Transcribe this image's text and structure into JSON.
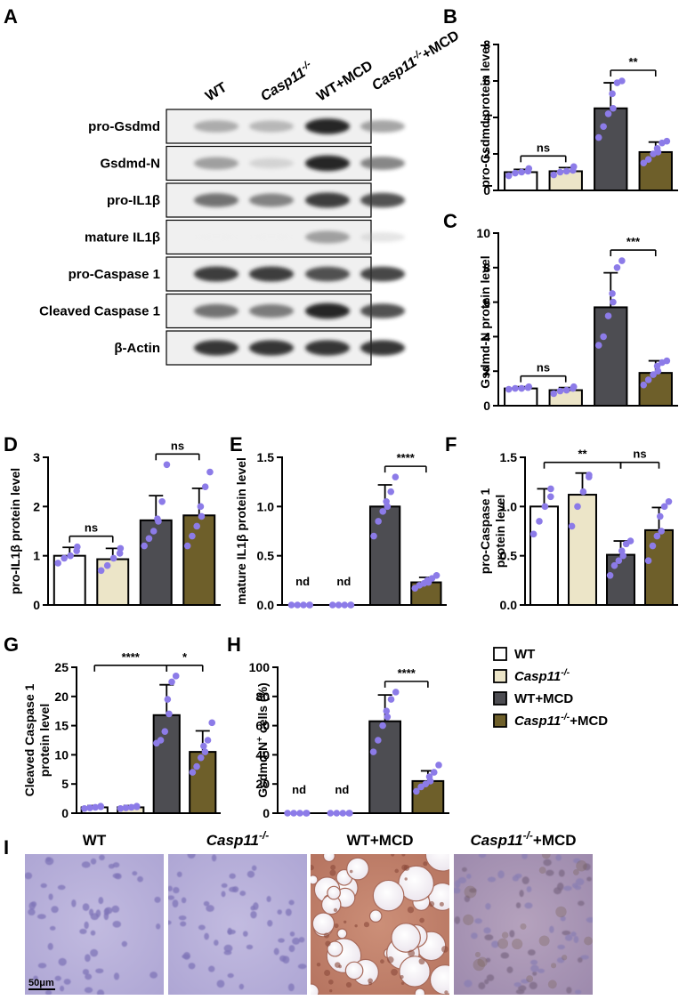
{
  "panels": {
    "A": "A",
    "B": "B",
    "C": "C",
    "D": "D",
    "E": "E",
    "F": "F",
    "G": "G",
    "H": "H",
    "I": "I"
  },
  "blot": {
    "lanes": [
      {
        "main": "WT",
        "sup": "",
        "tail": "",
        "italic": false
      },
      {
        "main": "Casp11",
        "sup": "-/-",
        "tail": "",
        "italic": true
      },
      {
        "main": "WT+MCD",
        "sup": "",
        "tail": "",
        "italic": false
      },
      {
        "main": "Casp11",
        "sup": "-/-",
        "tail": "+MCD",
        "italic": true
      }
    ],
    "rows": [
      {
        "label": "pro-Gsdmd",
        "intensity": [
          0.55,
          0.5,
          0.95,
          0.6
        ]
      },
      {
        "label": "Gsdmd-N",
        "intensity": [
          0.6,
          0.35,
          0.95,
          0.7
        ]
      },
      {
        "label": "pro-IL1β",
        "intensity": [
          0.75,
          0.7,
          0.9,
          0.85
        ]
      },
      {
        "label": "mature IL1β",
        "intensity": [
          0.03,
          0.03,
          0.6,
          0.3
        ]
      },
      {
        "label": "pro-Caspase 1",
        "intensity": [
          0.9,
          0.9,
          0.85,
          0.88
        ]
      },
      {
        "label": "Cleaved Caspase 1",
        "intensity": [
          0.75,
          0.72,
          0.95,
          0.85
        ]
      },
      {
        "label": "β-Actin",
        "intensity": [
          0.92,
          0.92,
          0.92,
          0.92
        ]
      }
    ]
  },
  "groups": [
    {
      "name": "WT",
      "sup": "",
      "tail": "",
      "italic": false,
      "color": "#ffffff"
    },
    {
      "name": "Casp11",
      "sup": "-/-",
      "tail": "",
      "italic": true,
      "color": "#ece5c8"
    },
    {
      "name": "WT+MCD",
      "sup": "",
      "tail": "",
      "italic": false,
      "color": "#4d4d52"
    },
    {
      "name": "Casp11",
      "sup": "-/-",
      "tail": "+MCD",
      "italic": true,
      "color": "#6e5f2a"
    }
  ],
  "point_color": "#8c7be8",
  "chart_data": [
    {
      "panel": "B",
      "type": "bar",
      "ylabel": "pro-Gsdmd protein level",
      "ylim": [
        0,
        8
      ],
      "ticks": [
        0,
        2,
        4,
        6,
        8
      ],
      "tick_labels": [
        "0",
        "2",
        "4",
        "6",
        "8"
      ],
      "means": [
        1.0,
        1.05,
        4.5,
        2.1
      ],
      "sd": [
        0.15,
        0.2,
        1.4,
        0.55
      ],
      "points": [
        [
          0.8,
          0.95,
          1.0,
          1.05,
          1.2
        ],
        [
          0.85,
          1.0,
          1.05,
          1.1,
          1.3
        ],
        [
          2.9,
          3.5,
          4.2,
          4.5,
          5.3,
          5.9,
          6.0
        ],
        [
          1.5,
          1.7,
          2.0,
          2.1,
          2.3,
          2.6,
          2.7
        ]
      ],
      "nd": [],
      "comparisons": [
        {
          "from": 0,
          "to": 1,
          "label": "ns"
        },
        {
          "from": 2,
          "to": 3,
          "label": "**"
        }
      ]
    },
    {
      "panel": "C",
      "type": "bar",
      "ylabel": "Gsdmd-N protein level",
      "ylim": [
        0,
        10
      ],
      "ticks": [
        0,
        2,
        4,
        6,
        8,
        10
      ],
      "tick_labels": [
        "0",
        "2",
        "4",
        "6",
        "8",
        "10"
      ],
      "means": [
        1.0,
        0.9,
        5.7,
        1.9
      ],
      "sd": [
        0.1,
        0.15,
        2.0,
        0.7
      ],
      "points": [
        [
          0.95,
          1.0,
          1.0,
          1.05,
          1.1
        ],
        [
          0.7,
          0.85,
          0.9,
          1.0,
          1.1
        ],
        [
          3.5,
          4.0,
          5.2,
          6.0,
          6.5,
          8.0,
          8.4
        ],
        [
          1.2,
          1.5,
          1.8,
          2.0,
          2.3,
          2.5,
          2.6
        ]
      ],
      "nd": [],
      "comparisons": [
        {
          "from": 0,
          "to": 1,
          "label": "ns"
        },
        {
          "from": 2,
          "to": 3,
          "label": "***"
        }
      ]
    },
    {
      "panel": "D",
      "type": "bar",
      "ylabel": "pro-IL1β protein level",
      "ylim": [
        0,
        3
      ],
      "ticks": [
        0,
        1,
        2,
        3
      ],
      "tick_labels": [
        "0",
        "1",
        "2",
        "3"
      ],
      "means": [
        1.0,
        0.93,
        1.72,
        1.82
      ],
      "sd": [
        0.17,
        0.22,
        0.5,
        0.55
      ],
      "points": [
        [
          0.85,
          0.95,
          1.0,
          1.1,
          1.18
        ],
        [
          0.7,
          0.8,
          0.95,
          1.05,
          1.15
        ],
        [
          1.2,
          1.35,
          1.5,
          1.7,
          1.75,
          2.1,
          2.85
        ],
        [
          1.2,
          1.4,
          1.6,
          1.8,
          2.0,
          2.4,
          2.7
        ]
      ],
      "nd": [],
      "comparisons": [
        {
          "from": 0,
          "to": 1,
          "label": "ns"
        },
        {
          "from": 2,
          "to": 3,
          "label": "ns"
        }
      ]
    },
    {
      "panel": "E",
      "type": "bar",
      "ylabel": "mature IL1β protein level",
      "ylim": [
        0,
        1.5
      ],
      "ticks": [
        0,
        0.5,
        1.0,
        1.5
      ],
      "tick_labels": [
        "0.0",
        "0.5",
        "1.0",
        "1.5"
      ],
      "means": [
        0,
        0,
        1.0,
        0.23
      ],
      "sd": [
        0,
        0,
        0.22,
        0.05
      ],
      "points": [
        [
          0,
          0,
          0,
          0,
          0
        ],
        [
          0,
          0,
          0,
          0,
          0
        ],
        [
          0.7,
          0.85,
          0.95,
          1.0,
          1.05,
          1.15,
          1.3
        ],
        [
          0.17,
          0.2,
          0.22,
          0.23,
          0.25,
          0.27,
          0.3
        ]
      ],
      "nd": [
        "nd",
        "nd",
        "",
        ""
      ],
      "comparisons": [
        {
          "from": 2,
          "to": 3,
          "label": "****"
        }
      ]
    },
    {
      "panel": "F",
      "type": "bar",
      "ylabel": "pro-Caspase 1\nprotein level",
      "ylim": [
        0,
        1.5
      ],
      "ticks": [
        0,
        0.5,
        1.0,
        1.5
      ],
      "tick_labels": [
        "0.0",
        "0.5",
        "1.0",
        "1.5"
      ],
      "means": [
        1.0,
        1.12,
        0.51,
        0.76
      ],
      "sd": [
        0.18,
        0.22,
        0.14,
        0.23
      ],
      "points": [
        [
          0.72,
          0.85,
          1.0,
          1.1,
          1.18
        ],
        [
          0.8,
          1.0,
          1.15,
          1.3,
          1.32
        ],
        [
          0.3,
          0.4,
          0.45,
          0.5,
          0.55,
          0.62,
          0.65
        ],
        [
          0.45,
          0.6,
          0.7,
          0.75,
          0.9,
          1.0,
          1.05
        ]
      ],
      "nd": [],
      "comparisons": [
        {
          "from": 0,
          "to": 2,
          "label": "**"
        },
        {
          "from": 2,
          "to": 3,
          "label": "ns"
        }
      ]
    },
    {
      "panel": "G",
      "type": "bar",
      "ylabel": "Cleaved Caspase 1\nprotein level",
      "ylim": [
        0,
        25
      ],
      "ticks": [
        0,
        5,
        10,
        15,
        20,
        25
      ],
      "tick_labels": [
        "0",
        "5",
        "10",
        "15",
        "20",
        "25"
      ],
      "means": [
        1.0,
        1.0,
        16.8,
        10.5
      ],
      "sd": [
        0.3,
        0.3,
        5.2,
        3.6
      ],
      "points": [
        [
          0.8,
          0.9,
          1.0,
          1.1,
          1.2
        ],
        [
          0.8,
          0.9,
          1.0,
          1.1,
          1.2
        ],
        [
          12.0,
          12.5,
          14.0,
          17.0,
          19.5,
          22.5,
          23.5
        ],
        [
          7.0,
          8.0,
          9.5,
          10.5,
          11.5,
          12.5,
          15.5
        ]
      ],
      "nd": [],
      "comparisons": [
        {
          "from": 0,
          "to": 2,
          "label": "****"
        },
        {
          "from": 2,
          "to": 3,
          "label": "*"
        }
      ]
    },
    {
      "panel": "H",
      "type": "bar",
      "ylabel": "Gsdmd-N+ cells (%)",
      "ylim": [
        0,
        100
      ],
      "ticks": [
        0,
        20,
        40,
        60,
        80,
        100
      ],
      "tick_labels": [
        "0",
        "20",
        "40",
        "60",
        "80",
        "100"
      ],
      "means": [
        0,
        0,
        63,
        22
      ],
      "sd": [
        0,
        0,
        18,
        7
      ],
      "points": [
        [
          0,
          0,
          0,
          0,
          0
        ],
        [
          0,
          0,
          0,
          0,
          0
        ],
        [
          42,
          50,
          60,
          66,
          70,
          78,
          83
        ],
        [
          15,
          18,
          20,
          22,
          25,
          28,
          33
        ]
      ],
      "nd": [
        "nd",
        "nd",
        "",
        ""
      ],
      "comparisons": [
        {
          "from": 2,
          "to": 3,
          "label": "****"
        }
      ]
    }
  ],
  "legend": [
    {
      "name": "WT",
      "sup": "",
      "tail": "",
      "italic": false,
      "color": "#ffffff"
    },
    {
      "name": "Casp11",
      "sup": "-/-",
      "tail": "",
      "italic": true,
      "color": "#ece5c8"
    },
    {
      "name": "WT+MCD",
      "sup": "",
      "tail": "",
      "italic": false,
      "color": "#4d4d52"
    },
    {
      "name": "Casp11",
      "sup": "-/-",
      "tail": "+MCD",
      "italic": true,
      "color": "#6e5f2a"
    }
  ],
  "histology": {
    "titles": [
      {
        "main": "WT",
        "sup": "",
        "tail": "",
        "italic": false
      },
      {
        "main": "Casp11",
        "sup": "-/-",
        "tail": "",
        "italic": true
      },
      {
        "main": "WT+MCD",
        "sup": "",
        "tail": "",
        "italic": false
      },
      {
        "main": "Casp11",
        "sup": "-/-",
        "tail": "+MCD",
        "italic": true
      }
    ],
    "scale_bar": "50μm"
  }
}
